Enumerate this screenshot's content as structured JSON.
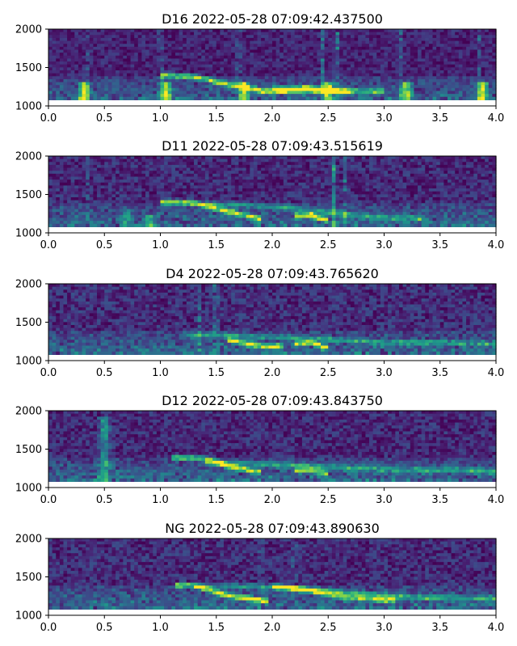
{
  "chart_data": [
    {
      "type": "heatmap",
      "title": "D16 2022-05-28 07:09:42.437500",
      "xlim": [
        0,
        4
      ],
      "ylim": [
        1000,
        2000
      ],
      "xticks": [
        "0.0",
        "0.5",
        "1.0",
        "1.5",
        "2.0",
        "2.5",
        "3.0",
        "3.5",
        "4.0"
      ],
      "yticks": [
        "1000",
        "1500",
        "2000"
      ],
      "colormap": "viridis",
      "data_floor": 1080,
      "calls": [
        {
          "x": [
            1.0,
            1.3,
            1.6,
            1.9,
            2.1,
            2.3,
            2.5,
            2.7
          ],
          "y": [
            1400,
            1380,
            1280,
            1200,
            1190,
            1220,
            1200,
            1180
          ],
          "intensity": 0.95
        },
        {
          "x": [
            2.0,
            2.3,
            2.6,
            3.0
          ],
          "y": [
            1230,
            1220,
            1200,
            1180
          ],
          "intensity": 0.6
        }
      ],
      "pulses": [
        {
          "x": 0.32,
          "top": 1300,
          "intensity": 0.85
        },
        {
          "x": 1.05,
          "top": 1300,
          "intensity": 0.85
        },
        {
          "x": 1.75,
          "top": 1300,
          "intensity": 0.8
        },
        {
          "x": 2.5,
          "top": 1300,
          "intensity": 0.8
        },
        {
          "x": 3.2,
          "top": 1300,
          "intensity": 0.85
        },
        {
          "x": 3.88,
          "top": 1300,
          "intensity": 0.85
        }
      ],
      "vertical_streaks": [
        {
          "x": 0.35,
          "intensity": 0.25
        },
        {
          "x": 1.0,
          "intensity": 0.3
        },
        {
          "x": 1.7,
          "intensity": 0.3
        },
        {
          "x": 2.45,
          "intensity": 0.35
        },
        {
          "x": 2.58,
          "intensity": 0.45
        },
        {
          "x": 3.15,
          "intensity": 0.25
        },
        {
          "x": 3.85,
          "intensity": 0.25
        }
      ],
      "noise_level": 0.2
    },
    {
      "type": "heatmap",
      "title": "D11 2022-05-28 07:09:43.515619",
      "xlim": [
        0,
        4
      ],
      "ylim": [
        1000,
        2000
      ],
      "xticks": [
        "0.0",
        "0.5",
        "1.0",
        "1.5",
        "2.0",
        "2.5",
        "3.0",
        "3.5",
        "4.0"
      ],
      "yticks": [
        "1000",
        "1500",
        "2000"
      ],
      "colormap": "viridis",
      "data_floor": 1080,
      "calls": [
        {
          "x": [
            1.0,
            1.3,
            1.6,
            1.9
          ],
          "y": [
            1400,
            1390,
            1280,
            1180
          ],
          "intensity": 0.95
        },
        {
          "x": [
            2.2,
            2.35,
            2.5
          ],
          "y": [
            1220,
            1230,
            1160
          ],
          "intensity": 1.0
        },
        {
          "x": [
            1.4,
            1.8,
            2.2,
            2.6,
            3.0,
            3.4
          ],
          "y": [
            1380,
            1360,
            1320,
            1250,
            1200,
            1180
          ],
          "intensity": 0.45
        }
      ],
      "pulses": [
        {
          "x": 0.7,
          "top": 1300,
          "intensity": 0.4
        },
        {
          "x": 0.9,
          "top": 1200,
          "intensity": 0.4
        }
      ],
      "vertical_streaks": [
        {
          "x": 0.35,
          "intensity": 0.2
        },
        {
          "x": 2.55,
          "intensity": 0.45
        },
        {
          "x": 2.65,
          "intensity": 0.3
        }
      ],
      "noise_level": 0.24
    },
    {
      "type": "heatmap",
      "title": "D4 2022-05-28 07:09:43.765620",
      "xlim": [
        0,
        4
      ],
      "ylim": [
        1000,
        2000
      ],
      "xticks": [
        "0.0",
        "0.5",
        "1.0",
        "1.5",
        "2.0",
        "2.5",
        "3.0",
        "3.5",
        "4.0"
      ],
      "yticks": [
        "1000",
        "1500",
        "2000"
      ],
      "colormap": "viridis",
      "data_floor": 1080,
      "calls": [
        {
          "x": [
            1.6,
            1.9,
            2.1
          ],
          "y": [
            1270,
            1190,
            1180
          ],
          "intensity": 0.9
        },
        {
          "x": [
            2.2,
            2.35,
            2.5
          ],
          "y": [
            1220,
            1230,
            1160
          ],
          "intensity": 0.95
        },
        {
          "x": [
            1.2,
            1.8,
            2.4,
            3.0,
            3.6,
            4.0
          ],
          "y": [
            1330,
            1320,
            1280,
            1240,
            1230,
            1220
          ],
          "intensity": 0.4
        }
      ],
      "pulses": [],
      "vertical_streaks": [
        {
          "x": 1.5,
          "intensity": 0.4
        },
        {
          "x": 1.35,
          "intensity": 0.25
        }
      ],
      "noise_level": 0.26
    },
    {
      "type": "heatmap",
      "title": "D12 2022-05-28 07:09:43.843750",
      "xlim": [
        0,
        4
      ],
      "ylim": [
        1000,
        2000
      ],
      "xticks": [
        "0.0",
        "0.5",
        "1.0",
        "1.5",
        "2.0",
        "2.5",
        "3.0",
        "3.5",
        "4.0"
      ],
      "yticks": [
        "1000",
        "1500",
        "2000"
      ],
      "colormap": "viridis",
      "data_floor": 1080,
      "calls": [
        {
          "x": [
            1.1,
            1.4,
            1.6,
            1.9
          ],
          "y": [
            1390,
            1380,
            1280,
            1200
          ],
          "intensity": 0.85
        },
        {
          "x": [
            2.2,
            2.35,
            2.5
          ],
          "y": [
            1220,
            1230,
            1170
          ],
          "intensity": 0.85
        },
        {
          "x": [
            1.4,
            2.0,
            2.6,
            3.2,
            3.8,
            4.0
          ],
          "y": [
            1330,
            1300,
            1260,
            1230,
            1220,
            1210
          ],
          "intensity": 0.45
        }
      ],
      "pulses": [
        {
          "x": 0.5,
          "top": 1900,
          "intensity": 0.5
        }
      ],
      "vertical_streaks": [],
      "noise_level": 0.24
    },
    {
      "type": "heatmap",
      "title": "NG 2022-05-28 07:09:43.890630",
      "xlim": [
        0,
        4
      ],
      "ylim": [
        1000,
        2000
      ],
      "xticks": [
        "0.0",
        "0.5",
        "1.0",
        "1.5",
        "2.0",
        "2.5",
        "3.0",
        "3.5",
        "4.0"
      ],
      "yticks": [
        "1000",
        "1500",
        "2000"
      ],
      "colormap": "viridis",
      "data_floor": 1080,
      "calls": [
        {
          "x": [
            1.15,
            1.3,
            1.6,
            1.95
          ],
          "y": [
            1390,
            1390,
            1260,
            1180
          ],
          "intensity": 0.95
        },
        {
          "x": [
            2.0,
            2.3,
            2.6,
            2.9,
            3.1
          ],
          "y": [
            1380,
            1330,
            1250,
            1210,
            1200
          ],
          "intensity": 0.8
        },
        {
          "x": [
            1.3,
            1.8,
            2.3,
            2.8,
            3.3,
            3.8,
            4.0
          ],
          "y": [
            1380,
            1380,
            1340,
            1280,
            1230,
            1220,
            1210
          ],
          "intensity": 0.45
        }
      ],
      "pulses": [],
      "vertical_streaks": [
        {
          "x": 1.9,
          "intensity": 0.25
        },
        {
          "x": 2.2,
          "intensity": 0.25
        }
      ],
      "noise_level": 0.25
    }
  ]
}
